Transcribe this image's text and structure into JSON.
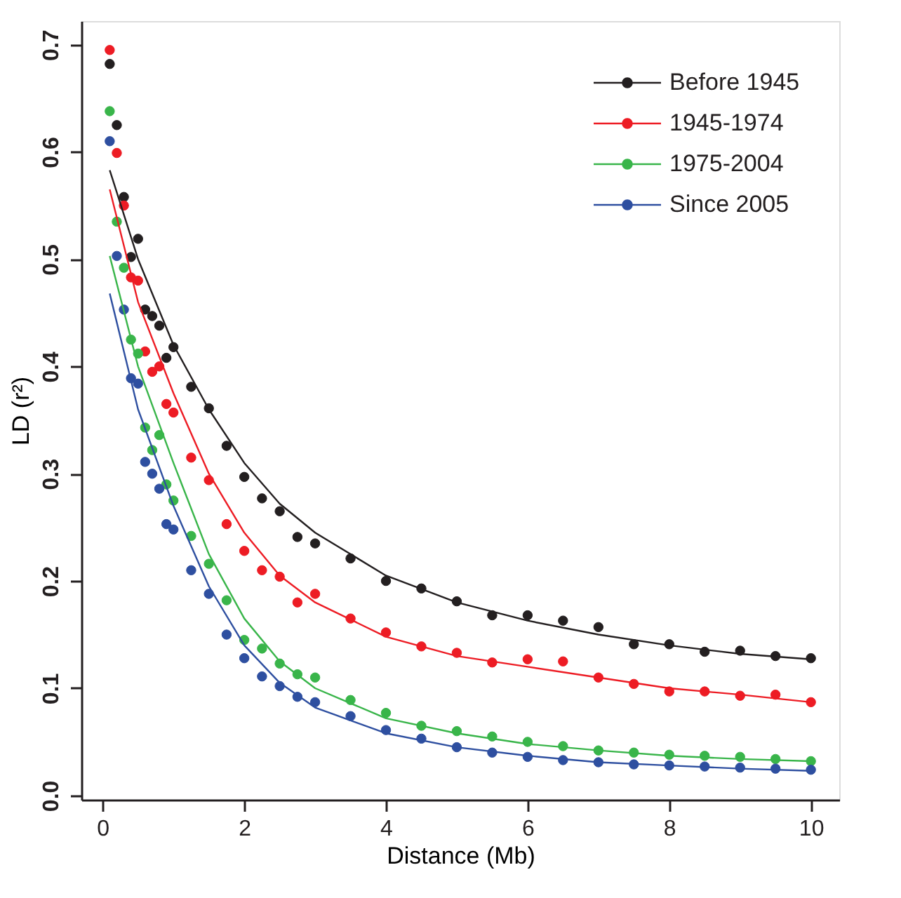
{
  "chart_data": {
    "type": "scatter",
    "xlabel": "Distance (Mb)",
    "ylabel": "LD (r²)",
    "x": [
      0.1,
      0.2,
      0.3,
      0.4,
      0.5,
      0.6,
      0.7,
      0.8,
      0.9,
      1.0,
      1.25,
      1.5,
      1.75,
      2.0,
      2.25,
      2.5,
      2.75,
      3.0,
      3.5,
      4,
      4.5,
      5,
      5.5,
      6,
      6.5,
      7,
      7.5,
      8,
      8.5,
      9,
      9.5,
      10
    ],
    "series": [
      {
        "name": "Before 1945",
        "color": "#231f20",
        "values": [
          0.682,
          0.625,
          0.558,
          0.502,
          0.519,
          0.453,
          0.447,
          0.438,
          0.408,
          0.418,
          0.381,
          0.361,
          0.326,
          0.297,
          0.277,
          0.265,
          0.241,
          0.235,
          0.221,
          0.2,
          0.193,
          0.181,
          0.168,
          0.168,
          0.163,
          0.157,
          0.141,
          0.141,
          0.134,
          0.135,
          0.13,
          0.128
        ]
      },
      {
        "name": "1945-1974",
        "color": "#ed1c24",
        "values": [
          0.695,
          0.599,
          0.55,
          0.483,
          0.48,
          0.414,
          0.395,
          0.4,
          0.365,
          0.357,
          0.315,
          0.294,
          0.253,
          0.228,
          0.21,
          0.204,
          0.18,
          0.188,
          0.165,
          0.152,
          0.139,
          0.133,
          0.124,
          0.127,
          0.125,
          0.11,
          0.104,
          0.097,
          0.097,
          0.093,
          0.094,
          0.087
        ]
      },
      {
        "name": "1975-2004",
        "color": "#39b54a",
        "values": [
          0.638,
          0.535,
          0.492,
          0.425,
          0.412,
          0.343,
          0.322,
          0.336,
          0.29,
          0.275,
          0.242,
          0.216,
          0.182,
          0.145,
          0.137,
          0.123,
          0.113,
          0.11,
          0.089,
          0.077,
          0.065,
          0.06,
          0.055,
          0.05,
          0.046,
          0.042,
          0.04,
          0.038,
          0.037,
          0.036,
          0.034,
          0.032
        ]
      },
      {
        "name": "Since 2005",
        "color": "#2e4fa0",
        "values": [
          0.61,
          0.503,
          0.453,
          0.389,
          0.384,
          0.311,
          0.3,
          0.286,
          0.253,
          0.248,
          0.21,
          0.188,
          0.15,
          0.128,
          0.111,
          0.102,
          0.092,
          0.087,
          0.074,
          0.061,
          0.053,
          0.045,
          0.04,
          0.036,
          0.033,
          0.031,
          0.029,
          0.028,
          0.027,
          0.026,
          0.025,
          0.024
        ]
      },
      {
        "type": "line",
        "marker": "none",
        "color": "#231f20",
        "x": [
          0.1,
          0.5,
          1,
          1.5,
          2,
          2.5,
          3,
          4,
          5,
          6,
          7,
          8,
          9,
          10
        ],
        "values": [
          0.583,
          0.5,
          0.42,
          0.36,
          0.31,
          0.272,
          0.245,
          0.205,
          0.18,
          0.163,
          0.15,
          0.14,
          0.132,
          0.127
        ]
      },
      {
        "type": "line",
        "marker": "none",
        "color": "#ed1c24",
        "x": [
          0.1,
          0.5,
          1,
          1.5,
          2,
          2.5,
          3,
          4,
          5,
          6,
          7,
          8,
          9,
          10
        ],
        "values": [
          0.565,
          0.46,
          0.375,
          0.3,
          0.245,
          0.205,
          0.18,
          0.148,
          0.13,
          0.12,
          0.11,
          0.1,
          0.094,
          0.087
        ]
      },
      {
        "type": "line",
        "marker": "none",
        "color": "#39b54a",
        "x": [
          0.1,
          0.5,
          1,
          1.5,
          2,
          2.5,
          3,
          4,
          5,
          6,
          7,
          8,
          9,
          10
        ],
        "values": [
          0.503,
          0.4,
          0.31,
          0.225,
          0.165,
          0.125,
          0.1,
          0.072,
          0.058,
          0.048,
          0.042,
          0.037,
          0.034,
          0.032
        ]
      },
      {
        "type": "line",
        "marker": "none",
        "color": "#2e4fa0",
        "x": [
          0.1,
          0.5,
          1,
          1.5,
          2,
          2.5,
          3,
          4,
          5,
          6,
          7,
          8,
          9,
          10
        ],
        "values": [
          0.468,
          0.36,
          0.27,
          0.195,
          0.14,
          0.105,
          0.082,
          0.058,
          0.045,
          0.037,
          0.031,
          0.028,
          0.025,
          0.023
        ]
      }
    ],
    "xlim": [
      -0.3,
      10.4
    ],
    "xticks": [
      0,
      2,
      4,
      6,
      8,
      10
    ],
    "ylim": [
      -0.004,
      0.722
    ],
    "yticks": [
      {
        "value": 0,
        "label": "0.0"
      },
      0.1,
      0.2,
      0.3,
      0.4,
      0.5,
      0.6,
      0.7
    ],
    "legend": "top right",
    "marker": "circle",
    "line_style": "solid",
    "grid": false
  }
}
